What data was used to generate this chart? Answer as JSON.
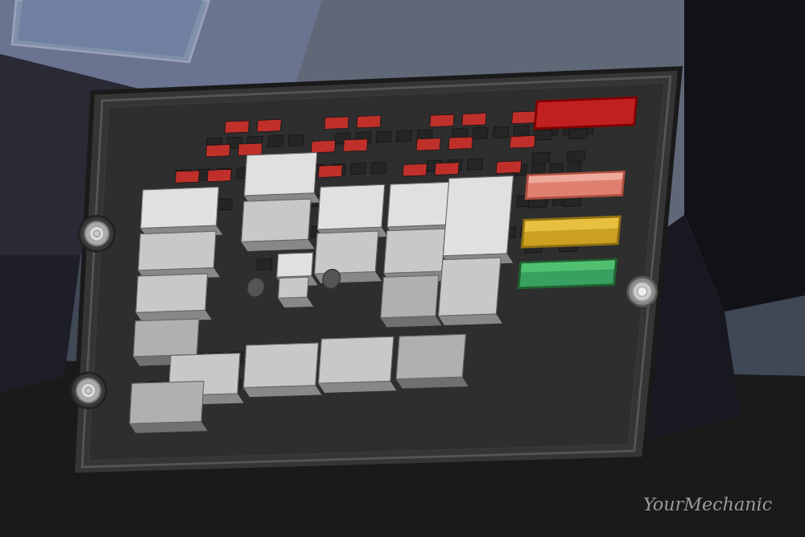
{
  "bg_upper_color": "#5a6680",
  "bg_lower_color": "#1a1a1a",
  "bg_left_dark": "#2a2a2a",
  "bg_right_dark": "#111111",
  "panel_body_color": "#383838",
  "panel_rim_color": "#4a4a4a",
  "panel_edge_color": "#222222",
  "relay_light": "#e0e0e0",
  "relay_mid": "#c8c8c8",
  "relay_dark": "#b0b0b0",
  "relay_shadow": "#888888",
  "relay_shadow2": "#707070",
  "fuse_red": "#c0302a",
  "fuse_red2": "#a02020",
  "fuse_salmon": "#e08070",
  "fuse_salmon_hi": "#eeaa9a",
  "fuse_yellow": "#cca020",
  "fuse_yellow_hi": "#e8c040",
  "fuse_green": "#38a060",
  "fuse_green_hi": "#50c070",
  "bolt_outer": "#555555",
  "bolt_mid": "#aaaaaa",
  "bolt_inner": "#dddddd",
  "slot_color": "#252525",
  "watermark": "YourMechanic",
  "watermark_color": "#aaaaaa"
}
